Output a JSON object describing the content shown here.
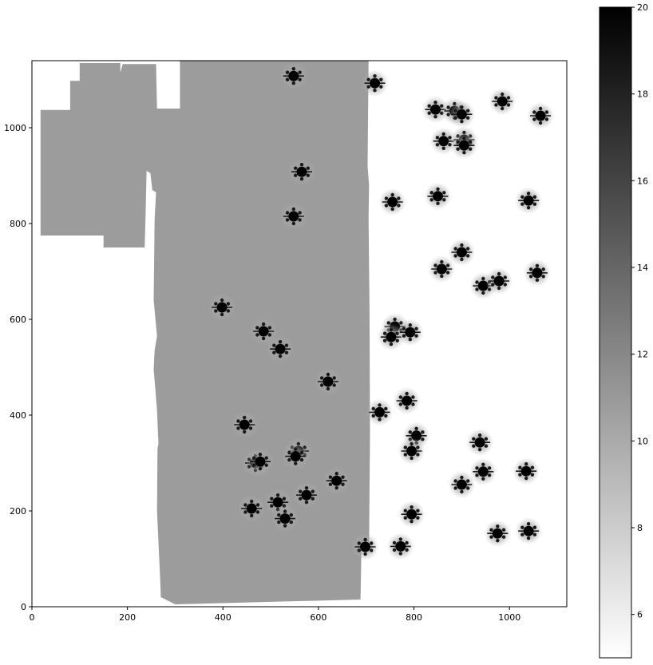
{
  "chart_data": {
    "type": "heatmap",
    "title": "",
    "xlabel": "",
    "ylabel": "",
    "xlim": [
      0,
      1120
    ],
    "ylim": [
      0,
      1140
    ],
    "x_ticks": [
      0,
      200,
      400,
      600,
      800,
      1000
    ],
    "y_ticks": [
      0,
      200,
      400,
      600,
      800,
      1000
    ],
    "x_tick_labels": [
      "0",
      "200",
      "400",
      "600",
      "800",
      "1000"
    ],
    "y_tick_labels": [
      "0",
      "200",
      "400",
      "600",
      "800",
      "1000"
    ],
    "grid": false,
    "colormap": "gray_r",
    "colorbar": {
      "range": [
        5,
        20
      ],
      "ticks": [
        6,
        8,
        10,
        12,
        14,
        16,
        18,
        20
      ],
      "tick_labels": [
        "6",
        "8",
        "10",
        "12",
        "14",
        "16",
        "18",
        "20"
      ]
    },
    "background_level": 10.8,
    "coverage_polygon": [
      [
        18,
        775
      ],
      [
        18,
        1037
      ],
      [
        80,
        1037
      ],
      [
        80,
        1098
      ],
      [
        100,
        1098
      ],
      [
        100,
        1135
      ],
      [
        185,
        1135
      ],
      [
        185,
        1115
      ],
      [
        190,
        1133
      ],
      [
        260,
        1133
      ],
      [
        262,
        1040
      ],
      [
        310,
        1040
      ],
      [
        310,
        1140
      ],
      [
        705,
        1140
      ],
      [
        703,
        920
      ],
      [
        706,
        880
      ],
      [
        705,
        810
      ],
      [
        707,
        620
      ],
      [
        708,
        360
      ],
      [
        706,
        125
      ],
      [
        690,
        125
      ],
      [
        688,
        15
      ],
      [
        300,
        5
      ],
      [
        270,
        20
      ],
      [
        268,
        70
      ],
      [
        262,
        200
      ],
      [
        263,
        330
      ],
      [
        265,
        340
      ],
      [
        262,
        410
      ],
      [
        258,
        460
      ],
      [
        255,
        495
      ],
      [
        257,
        535
      ],
      [
        262,
        565
      ],
      [
        255,
        640
      ],
      [
        257,
        810
      ],
      [
        260,
        865
      ],
      [
        252,
        870
      ],
      [
        248,
        905
      ],
      [
        240,
        910
      ],
      [
        238,
        820
      ],
      [
        236,
        750
      ],
      [
        150,
        750
      ],
      [
        150,
        775
      ],
      [
        18,
        775
      ]
    ],
    "sources": [
      {
        "x": 548,
        "y": 1108,
        "level": 20
      },
      {
        "x": 718,
        "y": 1093,
        "level": 20
      },
      {
        "x": 845,
        "y": 1038,
        "level": 20
      },
      {
        "x": 885,
        "y": 1035,
        "level": 20
      },
      {
        "x": 900,
        "y": 1028,
        "level": 20
      },
      {
        "x": 985,
        "y": 1055,
        "level": 20
      },
      {
        "x": 1065,
        "y": 1025,
        "level": 20
      },
      {
        "x": 862,
        "y": 972,
        "level": 20
      },
      {
        "x": 905,
        "y": 975,
        "level": 20
      },
      {
        "x": 905,
        "y": 963,
        "level": 20
      },
      {
        "x": 565,
        "y": 908,
        "level": 20
      },
      {
        "x": 548,
        "y": 815,
        "level": 20
      },
      {
        "x": 755,
        "y": 845,
        "level": 20
      },
      {
        "x": 850,
        "y": 857,
        "level": 20
      },
      {
        "x": 1040,
        "y": 848,
        "level": 20
      },
      {
        "x": 900,
        "y": 740,
        "level": 20
      },
      {
        "x": 858,
        "y": 705,
        "level": 20
      },
      {
        "x": 945,
        "y": 670,
        "level": 20
      },
      {
        "x": 978,
        "y": 680,
        "level": 20
      },
      {
        "x": 1058,
        "y": 697,
        "level": 20
      },
      {
        "x": 398,
        "y": 625,
        "level": 20
      },
      {
        "x": 485,
        "y": 575,
        "level": 20
      },
      {
        "x": 520,
        "y": 538,
        "level": 20
      },
      {
        "x": 760,
        "y": 585,
        "level": 20
      },
      {
        "x": 752,
        "y": 563,
        "level": 20
      },
      {
        "x": 792,
        "y": 573,
        "level": 20
      },
      {
        "x": 620,
        "y": 470,
        "level": 20
      },
      {
        "x": 728,
        "y": 406,
        "level": 20
      },
      {
        "x": 785,
        "y": 430,
        "level": 20
      },
      {
        "x": 445,
        "y": 380,
        "level": 20
      },
      {
        "x": 805,
        "y": 357,
        "level": 20
      },
      {
        "x": 795,
        "y": 325,
        "level": 20
      },
      {
        "x": 938,
        "y": 343,
        "level": 20
      },
      {
        "x": 558,
        "y": 325,
        "level": 20
      },
      {
        "x": 552,
        "y": 314,
        "level": 20
      },
      {
        "x": 468,
        "y": 300,
        "level": 20
      },
      {
        "x": 478,
        "y": 303,
        "level": 20
      },
      {
        "x": 945,
        "y": 282,
        "level": 20
      },
      {
        "x": 1035,
        "y": 283,
        "level": 20
      },
      {
        "x": 638,
        "y": 263,
        "level": 20
      },
      {
        "x": 900,
        "y": 255,
        "level": 20
      },
      {
        "x": 575,
        "y": 233,
        "level": 20
      },
      {
        "x": 515,
        "y": 218,
        "level": 20
      },
      {
        "x": 460,
        "y": 205,
        "level": 20
      },
      {
        "x": 530,
        "y": 184,
        "level": 20
      },
      {
        "x": 795,
        "y": 193,
        "level": 20
      },
      {
        "x": 975,
        "y": 153,
        "level": 20
      },
      {
        "x": 1040,
        "y": 158,
        "level": 20
      },
      {
        "x": 698,
        "y": 125,
        "level": 20
      },
      {
        "x": 772,
        "y": 126,
        "level": 20
      }
    ]
  }
}
